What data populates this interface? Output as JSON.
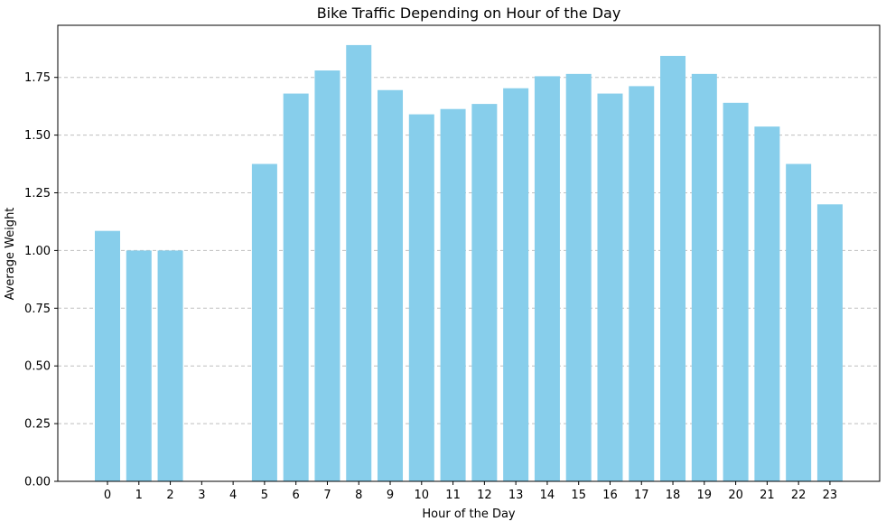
{
  "chart_data": {
    "type": "bar",
    "title": "Bike Traffic Depending on Hour of the Day",
    "xlabel": "Hour of the Day",
    "ylabel": "Average Weight",
    "categories": [
      "0",
      "1",
      "2",
      "3",
      "4",
      "5",
      "6",
      "7",
      "8",
      "9",
      "10",
      "11",
      "12",
      "13",
      "14",
      "15",
      "16",
      "17",
      "18",
      "19",
      "20",
      "21",
      "22",
      "23"
    ],
    "values": [
      1.085,
      1.0,
      1.0,
      0,
      0,
      1.375,
      1.68,
      1.78,
      1.89,
      1.695,
      1.59,
      1.613,
      1.635,
      1.703,
      1.755,
      1.765,
      1.68,
      1.712,
      1.843,
      1.765,
      1.64,
      1.537,
      1.375,
      1.2
    ],
    "ylim": [
      0,
      1.9
    ],
    "yticks": [
      "0.00",
      "0.25",
      "0.50",
      "0.75",
      "1.00",
      "1.25",
      "1.50",
      "1.75"
    ],
    "grid": "y-dashed",
    "colors": {
      "bar": "#87ceeb",
      "grid": "#bfbfbf",
      "axis": "#000000"
    }
  }
}
